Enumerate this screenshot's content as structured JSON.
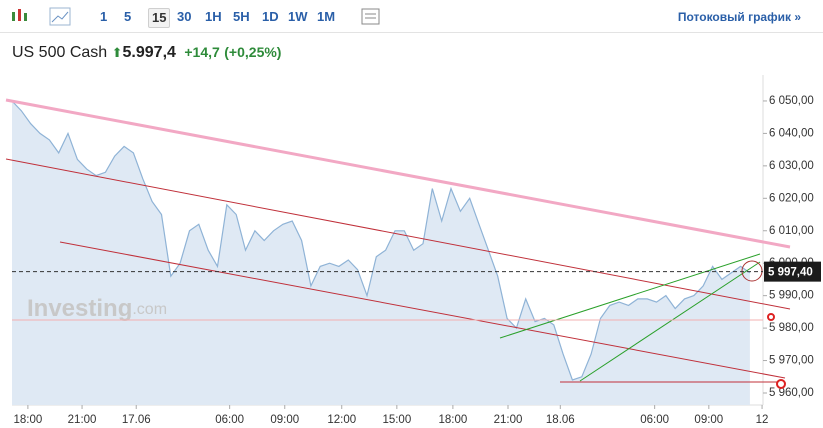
{
  "toolbar": {
    "intervals": [
      "1",
      "5",
      "15",
      "30",
      "1H",
      "5H",
      "1D",
      "1W",
      "1M"
    ],
    "active": "15",
    "link": "Потоковый график »"
  },
  "header": {
    "instrument": "US 500 Cash",
    "price": "5.997,4",
    "change": "+14,7",
    "change_pct": "(+0,25%)"
  },
  "watermark": {
    "brand": "Investing",
    "suffix": ".com"
  },
  "chart_data": {
    "type": "area",
    "color": "#8fb3d6",
    "fill": "#dfe9f4",
    "values": [
      6050,
      6047,
      6043,
      6040,
      6038,
      6034,
      6040,
      6032,
      6029,
      6027,
      6028,
      6033,
      6036,
      6034,
      6026,
      6019,
      6015,
      5996,
      6000,
      6010,
      6012,
      6004,
      5999,
      6018,
      6015,
      6004,
      6010,
      6007,
      6010,
      6012,
      6013,
      6007,
      5993,
      5999,
      6000,
      5999,
      6001,
      5998,
      5990,
      6002,
      6004,
      6010,
      6010,
      6004,
      6006,
      6023,
      6013,
      6023,
      6016,
      6020,
      6012,
      6004,
      5996,
      5983,
      5980,
      5989,
      5982,
      5983,
      5981,
      5972,
      5964,
      5965,
      5972,
      5983,
      5987,
      5988,
      5987,
      5989,
      5989,
      5988,
      5990,
      5986,
      5989,
      5990,
      5993,
      5999,
      5995,
      5997,
      5999,
      5997
    ],
    "xlim": [
      0,
      80.4
    ],
    "xticks": [
      {
        "value": 1.7,
        "label": "18:00"
      },
      {
        "value": 7.5,
        "label": "21:00"
      },
      {
        "value": 13.3,
        "label": "17.06"
      },
      {
        "value": 23.3,
        "label": "06:00"
      },
      {
        "value": 29.2,
        "label": "09:00"
      },
      {
        "value": 35.3,
        "label": "12:00"
      },
      {
        "value": 41.2,
        "label": "15:00"
      },
      {
        "value": 47.2,
        "label": "18:00"
      },
      {
        "value": 53.1,
        "label": "21:00"
      },
      {
        "value": 58.7,
        "label": "18.06"
      },
      {
        "value": 68.8,
        "label": "06:00"
      },
      {
        "value": 74.6,
        "label": "09:00"
      },
      {
        "value": 80.3,
        "label": "12"
      }
    ],
    "ylim": [
      5956.3,
      6058
    ],
    "yticks": [
      {
        "value": 6050,
        "label": "6 050,00"
      },
      {
        "value": 6040,
        "label": "6 040,00"
      },
      {
        "value": 6030,
        "label": "6 030,00"
      },
      {
        "value": 6020,
        "label": "6 020,00"
      },
      {
        "value": 6010,
        "label": "6 010,00"
      },
      {
        "value": 6000,
        "label": "6 000,00"
      },
      {
        "value": 5990,
        "label": "5 990,00"
      },
      {
        "value": 5980,
        "label": "5 980,00"
      },
      {
        "value": 5970,
        "label": "5 970,00"
      },
      {
        "value": 5960,
        "label": "5 960,00"
      }
    ],
    "last_price": {
      "value": 5997.4,
      "label": "5 997,40"
    }
  }
}
